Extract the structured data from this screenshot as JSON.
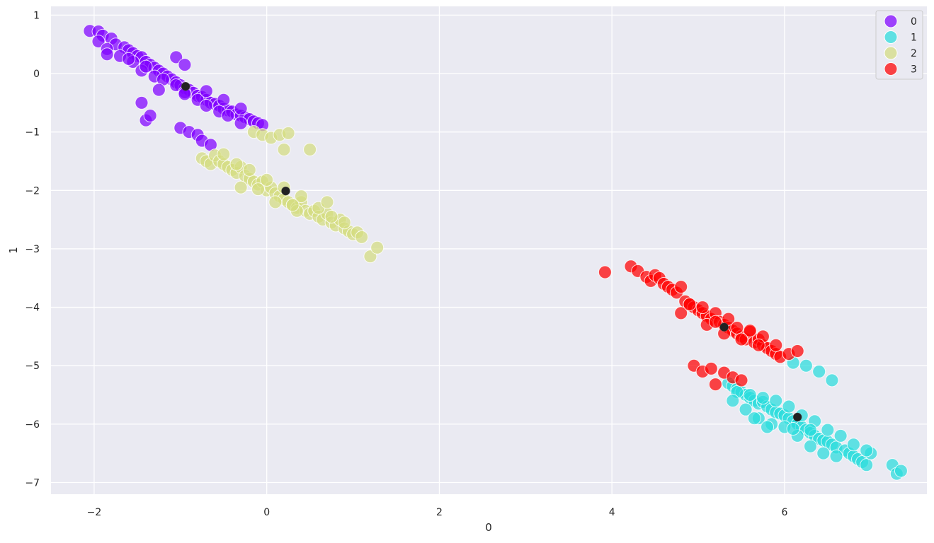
{
  "chart_data": {
    "type": "scatter",
    "title": "",
    "xlabel": "0",
    "ylabel": "1",
    "xlim": [
      -2.5,
      7.65
    ],
    "ylim": [
      -7.2,
      1.15
    ],
    "xticks": [
      -2,
      0,
      2,
      4,
      6
    ],
    "yticks": [
      1,
      0,
      -1,
      -2,
      -3,
      -4,
      -5,
      -6,
      -7
    ],
    "xtick_labels": [
      "−2",
      "0",
      "2",
      "4",
      "6"
    ],
    "ytick_labels": [
      "1",
      "0",
      "−1",
      "−2",
      "−3",
      "−4",
      "−5",
      "−6",
      "−7"
    ],
    "grid": true,
    "background": "#eaeaf2",
    "legend": {
      "placement": "top-right"
    },
    "series": [
      {
        "name": "0",
        "color": "#8000ff",
        "x": [
          -2.05,
          -1.95,
          -1.9,
          -1.8,
          -1.75,
          -1.65,
          -1.6,
          -1.55,
          -1.5,
          -1.45,
          -1.4,
          -1.35,
          -1.3,
          -1.25,
          -1.2,
          -1.15,
          -1.1,
          -1.05,
          -1.0,
          -0.95,
          -0.9,
          -0.85,
          -0.8,
          -0.75,
          -0.7,
          -0.65,
          -0.6,
          -0.55,
          -0.5,
          -0.45,
          -0.4,
          -0.35,
          -0.3,
          -0.25,
          -0.2,
          -0.15,
          -0.1,
          -0.05,
          -1.95,
          -1.85,
          -1.7,
          -1.55,
          -1.45,
          -1.3,
          -1.2,
          -1.05,
          -0.95,
          -0.8,
          -0.7,
          -0.55,
          -0.45,
          -0.3,
          -1.45,
          -1.4,
          -1.35,
          -1.0,
          -0.9,
          -0.8,
          -0.75,
          -0.65,
          -1.05,
          -0.95,
          -1.85,
          -1.6,
          -1.4,
          -1.25,
          -0.95,
          -0.7,
          -0.5,
          -0.3
        ],
        "y": [
          0.73,
          0.72,
          0.65,
          0.6,
          0.5,
          0.45,
          0.4,
          0.35,
          0.3,
          0.28,
          0.2,
          0.15,
          0.1,
          0.05,
          0.0,
          -0.05,
          -0.1,
          -0.15,
          -0.2,
          -0.25,
          -0.28,
          -0.33,
          -0.38,
          -0.4,
          -0.45,
          -0.5,
          -0.52,
          -0.55,
          -0.6,
          -0.63,
          -0.65,
          -0.7,
          -0.72,
          -0.75,
          -0.78,
          -0.82,
          -0.85,
          -0.88,
          0.55,
          0.42,
          0.3,
          0.2,
          0.05,
          -0.05,
          -0.1,
          -0.2,
          -0.32,
          -0.45,
          -0.55,
          -0.65,
          -0.72,
          -0.85,
          -0.5,
          -0.8,
          -0.72,
          -0.93,
          -1.0,
          -1.05,
          -1.15,
          -1.22,
          0.28,
          0.15,
          0.33,
          0.25,
          0.12,
          -0.28,
          -0.35,
          -0.3,
          -0.45,
          -0.6
        ]
      },
      {
        "name": "1",
        "color": "#2adddd",
        "x": [
          5.35,
          5.4,
          5.45,
          5.5,
          5.55,
          5.6,
          5.65,
          5.7,
          5.75,
          5.8,
          5.85,
          5.9,
          5.95,
          6.0,
          6.05,
          6.1,
          6.15,
          6.2,
          6.25,
          6.3,
          6.35,
          6.4,
          6.45,
          6.5,
          6.55,
          6.6,
          6.7,
          6.75,
          6.8,
          6.85,
          6.9,
          6.95,
          7.0,
          7.25,
          7.3,
          7.35,
          5.45,
          5.6,
          5.75,
          5.9,
          6.05,
          6.2,
          6.35,
          6.5,
          6.65,
          6.8,
          6.95,
          6.1,
          6.25,
          6.4,
          6.55,
          5.4,
          5.55,
          5.7,
          5.85,
          6.0,
          6.15,
          6.3,
          6.45,
          6.6,
          5.65,
          5.8,
          6.1,
          6.3
        ],
        "y": [
          -5.3,
          -5.35,
          -5.4,
          -5.45,
          -5.5,
          -5.55,
          -5.6,
          -5.65,
          -5.62,
          -5.7,
          -5.75,
          -5.8,
          -5.82,
          -5.85,
          -5.9,
          -5.95,
          -6.0,
          -6.05,
          -6.1,
          -6.15,
          -6.2,
          -6.25,
          -6.28,
          -6.3,
          -6.35,
          -6.4,
          -6.45,
          -6.5,
          -6.55,
          -6.6,
          -6.65,
          -6.7,
          -6.5,
          -6.7,
          -6.85,
          -6.8,
          -5.45,
          -5.5,
          -5.55,
          -5.6,
          -5.7,
          -5.85,
          -5.95,
          -6.1,
          -6.2,
          -6.35,
          -6.45,
          -4.95,
          -5.0,
          -5.1,
          -5.25,
          -5.6,
          -5.75,
          -5.9,
          -6.0,
          -6.05,
          -6.2,
          -6.38,
          -6.5,
          -6.55,
          -5.9,
          -6.05,
          -6.08,
          -6.1
        ]
      },
      {
        "name": "2",
        "color": "#d4dd80",
        "x": [
          -0.75,
          -0.7,
          -0.65,
          -0.6,
          -0.55,
          -0.5,
          -0.45,
          -0.4,
          -0.35,
          -0.3,
          -0.25,
          -0.2,
          -0.15,
          -0.1,
          -0.05,
          0.0,
          0.05,
          0.1,
          0.15,
          0.2,
          0.25,
          0.3,
          0.35,
          0.4,
          0.45,
          0.5,
          0.55,
          0.6,
          0.65,
          0.7,
          0.75,
          0.8,
          0.85,
          0.9,
          0.95,
          1.0,
          1.05,
          1.1,
          1.2,
          1.28,
          -0.15,
          -0.05,
          0.05,
          0.15,
          0.2,
          0.25,
          0.5,
          -0.5,
          -0.35,
          -0.2,
          0.0,
          0.2,
          0.4,
          0.6,
          0.75,
          0.35,
          -0.3,
          -0.1,
          0.1,
          0.3,
          0.7,
          0.9
        ],
        "y": [
          -1.45,
          -1.5,
          -1.55,
          -1.4,
          -1.5,
          -1.55,
          -1.6,
          -1.65,
          -1.7,
          -1.6,
          -1.75,
          -1.8,
          -1.85,
          -1.9,
          -1.85,
          -2.0,
          -1.95,
          -2.05,
          -2.1,
          -2.15,
          -2.2,
          -2.25,
          -2.3,
          -2.2,
          -2.35,
          -2.4,
          -2.35,
          -2.45,
          -2.5,
          -2.4,
          -2.55,
          -2.6,
          -2.5,
          -2.65,
          -2.7,
          -2.75,
          -2.72,
          -2.8,
          -3.13,
          -2.98,
          -1.0,
          -1.05,
          -1.1,
          -1.05,
          -1.3,
          -1.02,
          -1.3,
          -1.38,
          -1.55,
          -1.65,
          -1.82,
          -1.95,
          -2.1,
          -2.3,
          -2.45,
          -2.35,
          -1.95,
          -1.98,
          -2.2,
          -2.25,
          -2.2,
          -2.55
        ]
      },
      {
        "name": "3",
        "color": "#ff0000",
        "x": [
          3.92,
          4.22,
          4.3,
          4.4,
          4.45,
          4.5,
          4.55,
          4.6,
          4.65,
          4.7,
          4.75,
          4.8,
          4.85,
          4.9,
          4.95,
          5.0,
          5.05,
          5.1,
          5.15,
          5.2,
          5.25,
          5.3,
          5.35,
          5.4,
          5.45,
          5.5,
          5.55,
          5.6,
          5.65,
          5.7,
          5.75,
          5.8,
          5.85,
          5.9,
          5.95,
          6.05,
          6.15,
          4.95,
          5.05,
          5.15,
          5.2,
          5.3,
          5.4,
          5.5,
          5.1,
          5.2,
          5.35,
          5.45,
          5.6,
          5.75,
          5.9,
          4.8,
          4.9,
          5.05,
          5.3,
          5.5,
          5.7
        ],
        "y": [
          -3.4,
          -3.3,
          -3.38,
          -3.48,
          -3.55,
          -3.45,
          -3.5,
          -3.6,
          -3.65,
          -3.7,
          -3.75,
          -3.65,
          -3.9,
          -3.95,
          -4.0,
          -4.05,
          -4.1,
          -4.15,
          -4.2,
          -4.1,
          -4.25,
          -4.3,
          -4.35,
          -4.4,
          -4.45,
          -4.5,
          -4.55,
          -4.42,
          -4.6,
          -4.55,
          -4.65,
          -4.7,
          -4.75,
          -4.8,
          -4.85,
          -4.8,
          -4.75,
          -5.0,
          -5.1,
          -5.05,
          -5.32,
          -5.12,
          -5.2,
          -5.25,
          -4.3,
          -4.25,
          -4.2,
          -4.35,
          -4.4,
          -4.5,
          -4.65,
          -4.1,
          -3.95,
          -4.0,
          -4.45,
          -4.55,
          -4.65
        ]
      }
    ],
    "centroids": {
      "color": "#222222",
      "x": [
        -0.94,
        6.15,
        0.22,
        5.3
      ],
      "y": [
        -0.22,
        -5.88,
        -2.01,
        -4.34
      ]
    }
  }
}
